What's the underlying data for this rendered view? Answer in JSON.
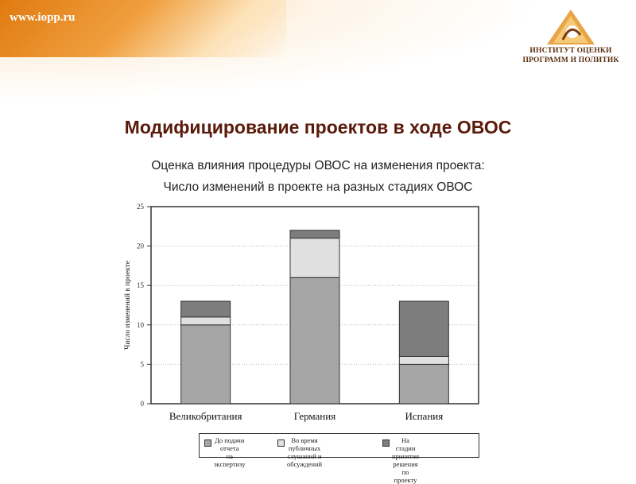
{
  "header": {
    "site_url": "www.iopp.ru",
    "logo_line1": "ИНСТИТУТ ОЦЕНКИ",
    "logo_line2": "ПРОГРАММ И ПОЛИТИК"
  },
  "slide": {
    "title": "Модифицирование проектов в ходе ОВОС",
    "subtitle_line1": "Оценка влияния процедуры ОВОС на изменения проекта:",
    "subtitle_line2": "Число изменений в проекте на разных стадиях ОВОС"
  },
  "colors": {
    "accent_orange": "#e88a2a",
    "title_color": "#5a1a0a",
    "series1": "#a6a6a6",
    "series2": "#e0e0e0",
    "series3": "#7d7d7d"
  },
  "chart_data": {
    "type": "bar",
    "stacked": true,
    "categories": [
      "Великобритания",
      "Германия",
      "Испания"
    ],
    "series": [
      {
        "name": "До подачи отчета\nна экспертизу",
        "values": [
          10,
          16,
          5
        ]
      },
      {
        "name": "Во время публичных\nслушаний и обсуждений",
        "values": [
          1,
          5,
          1
        ]
      },
      {
        "name": "На стадии принятия\nрешения по проекту",
        "values": [
          2,
          1,
          7
        ]
      }
    ],
    "ylabel": "Число изменений в проекте",
    "xlabel": "",
    "ylim": [
      0,
      25
    ],
    "yticks": [
      0,
      5,
      10,
      15,
      20,
      25
    ],
    "grid": true,
    "legend_position": "bottom"
  }
}
